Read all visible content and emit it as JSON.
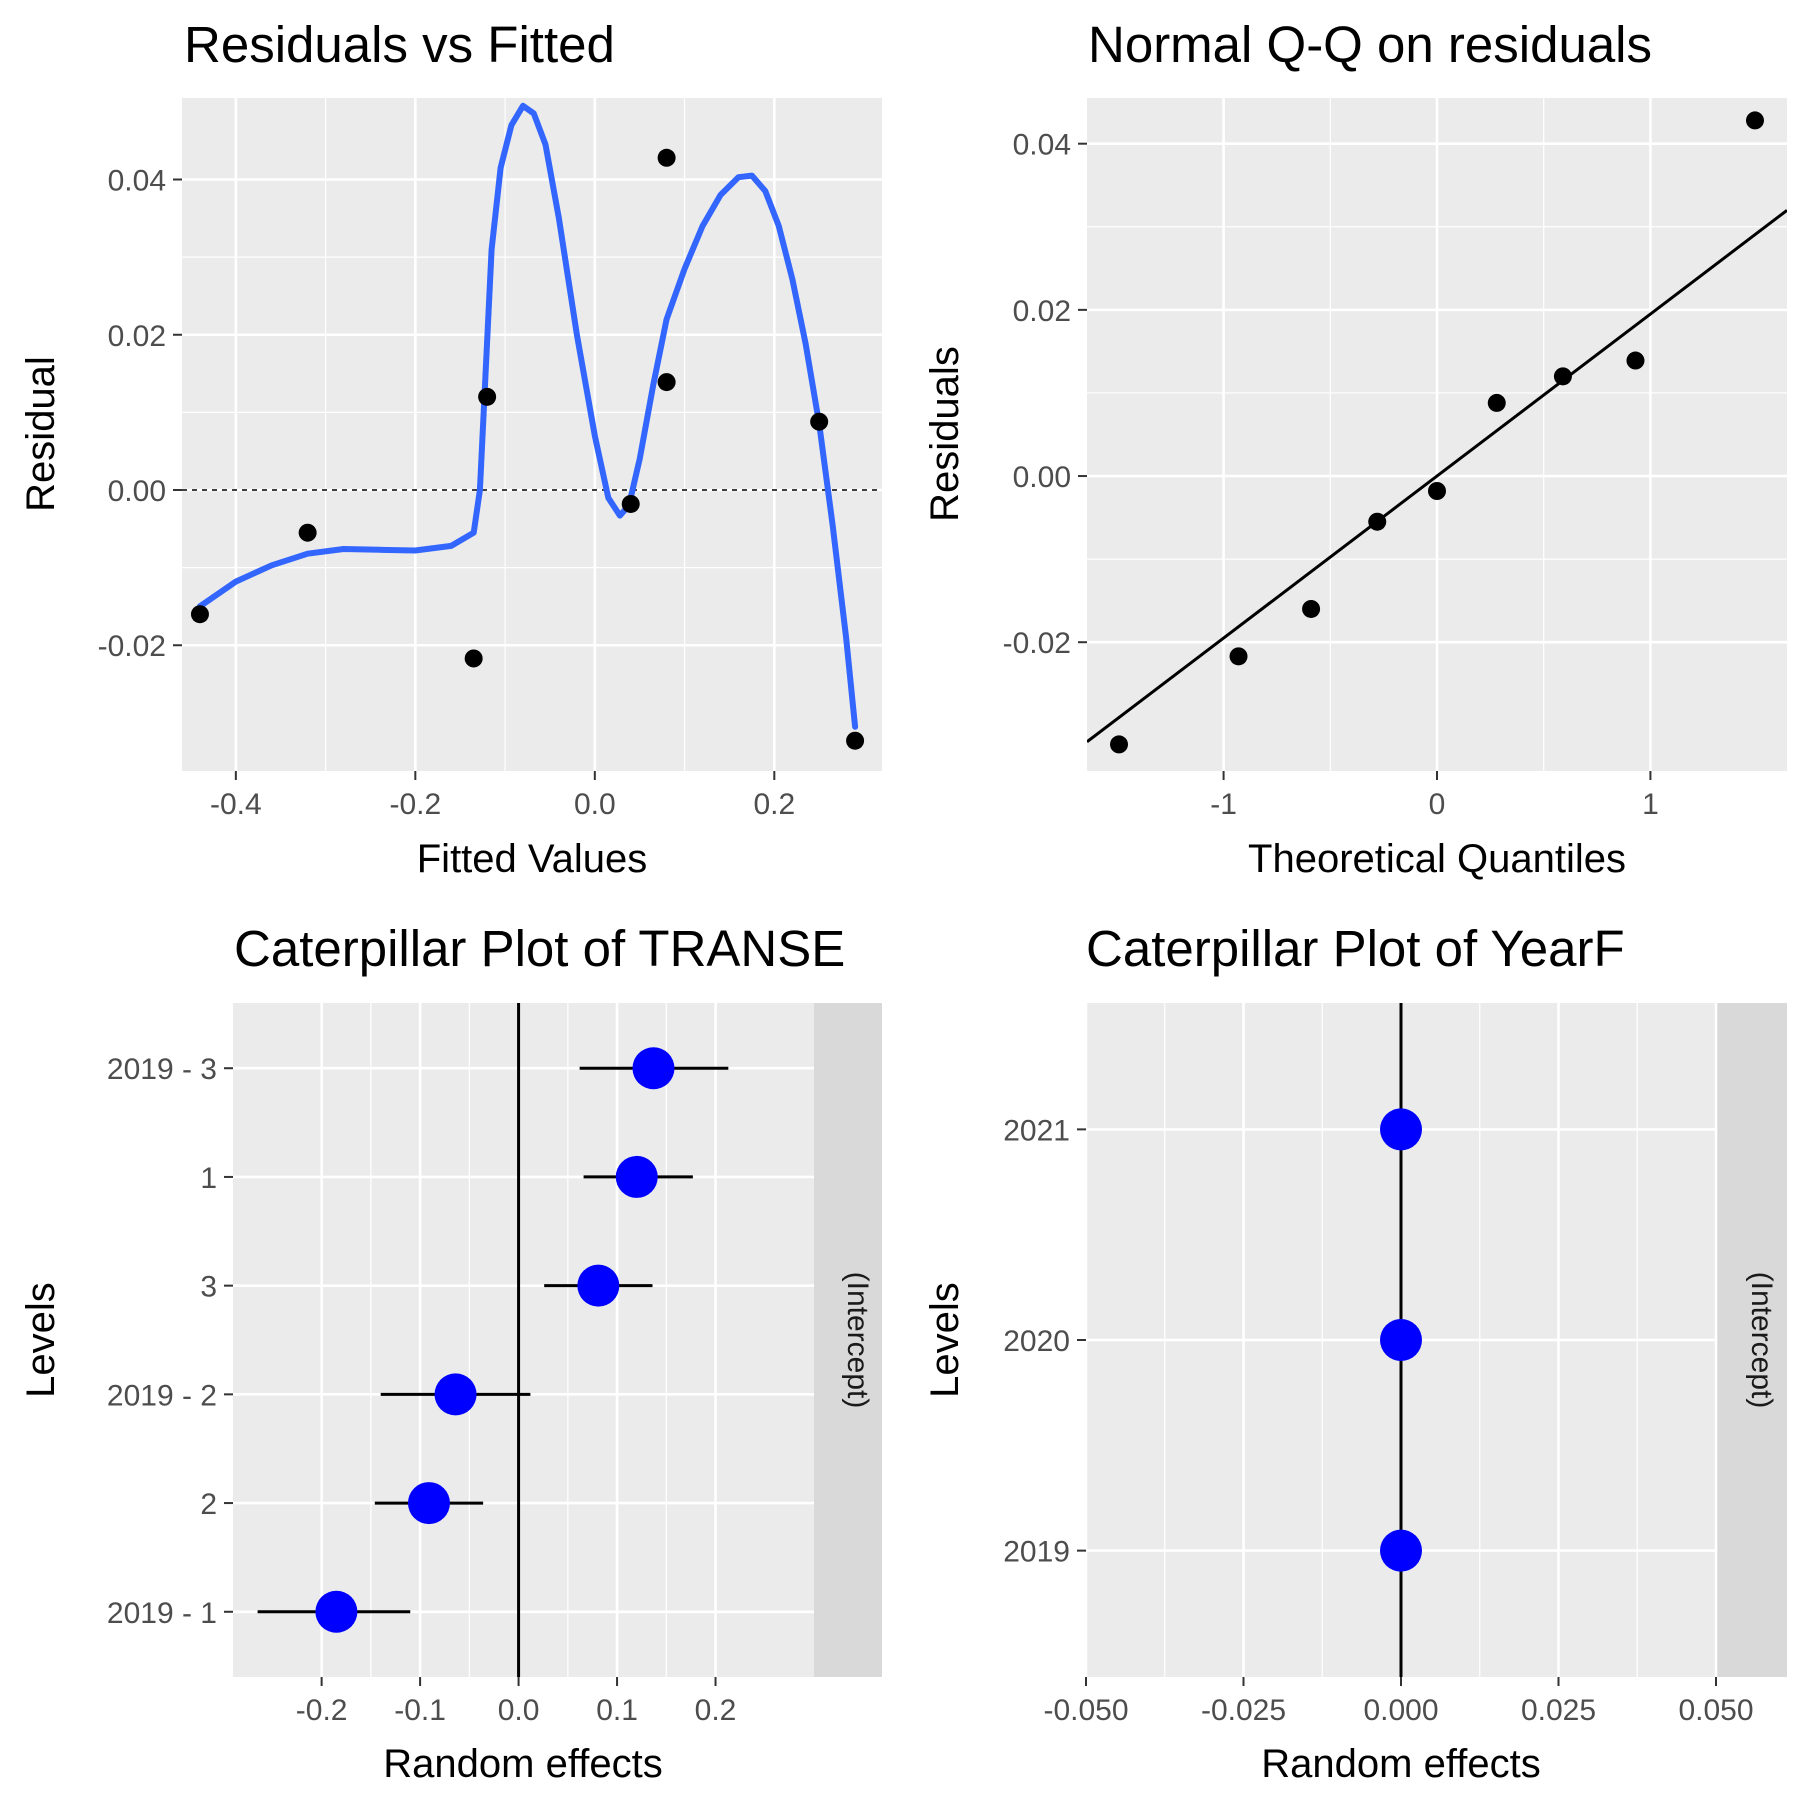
{
  "chart_data": [
    {
      "id": "resid",
      "type": "scatter",
      "title": "Residuals vs Fitted",
      "xlabel": "Fitted Values",
      "ylabel": "Residual",
      "xlim": [
        -0.46,
        0.32
      ],
      "ylim": [
        -0.0362,
        0.0505
      ],
      "x_ticks": [
        -0.4,
        -0.2,
        0.0,
        0.2
      ],
      "x_tick_labels": [
        "-0.4",
        "-0.2",
        "0.0",
        "0.2"
      ],
      "y_ticks": [
        -0.02,
        0.0,
        0.02,
        0.04
      ],
      "y_tick_labels": [
        "-0.02",
        "0.00",
        "0.02",
        "0.04"
      ],
      "grid": true,
      "reference_line": {
        "y": 0,
        "style": "dashed"
      },
      "points": [
        {
          "x": -0.44,
          "y": -0.016
        },
        {
          "x": -0.32,
          "y": -0.0055
        },
        {
          "x": -0.135,
          "y": -0.0217
        },
        {
          "x": -0.12,
          "y": 0.012
        },
        {
          "x": 0.04,
          "y": -0.0018
        },
        {
          "x": 0.08,
          "y": 0.0428
        },
        {
          "x": 0.08,
          "y": 0.0139
        },
        {
          "x": 0.25,
          "y": 0.0088
        },
        {
          "x": 0.29,
          "y": -0.0323
        }
      ],
      "smooth_color": "#3366FF",
      "smooth": [
        {
          "x": -0.44,
          "y": -0.015
        },
        {
          "x": -0.4,
          "y": -0.0118
        },
        {
          "x": -0.36,
          "y": -0.0097
        },
        {
          "x": -0.32,
          "y": -0.0082
        },
        {
          "x": -0.28,
          "y": -0.0076
        },
        {
          "x": -0.24,
          "y": -0.0077
        },
        {
          "x": -0.2,
          "y": -0.0078
        },
        {
          "x": -0.16,
          "y": -0.0072
        },
        {
          "x": -0.135,
          "y": -0.0055
        },
        {
          "x": -0.128,
          "y": 0.0
        },
        {
          "x": -0.115,
          "y": 0.031
        },
        {
          "x": -0.105,
          "y": 0.0415
        },
        {
          "x": -0.093,
          "y": 0.047
        },
        {
          "x": -0.08,
          "y": 0.0495
        },
        {
          "x": -0.068,
          "y": 0.0485
        },
        {
          "x": -0.055,
          "y": 0.0445
        },
        {
          "x": -0.04,
          "y": 0.035
        },
        {
          "x": -0.02,
          "y": 0.02
        },
        {
          "x": 0.0,
          "y": 0.007
        },
        {
          "x": 0.015,
          "y": -0.001
        },
        {
          "x": 0.028,
          "y": -0.0033
        },
        {
          "x": 0.038,
          "y": -0.002
        },
        {
          "x": 0.05,
          "y": 0.004
        },
        {
          "x": 0.065,
          "y": 0.0135
        },
        {
          "x": 0.08,
          "y": 0.022
        },
        {
          "x": 0.1,
          "y": 0.0285
        },
        {
          "x": 0.12,
          "y": 0.034
        },
        {
          "x": 0.14,
          "y": 0.038
        },
        {
          "x": 0.16,
          "y": 0.0403
        },
        {
          "x": 0.175,
          "y": 0.0405
        },
        {
          "x": 0.19,
          "y": 0.0385
        },
        {
          "x": 0.205,
          "y": 0.034
        },
        {
          "x": 0.22,
          "y": 0.0272
        },
        {
          "x": 0.235,
          "y": 0.0188
        },
        {
          "x": 0.25,
          "y": 0.0085
        },
        {
          "x": 0.265,
          "y": -0.0045
        },
        {
          "x": 0.28,
          "y": -0.019
        },
        {
          "x": 0.29,
          "y": -0.0305
        }
      ]
    },
    {
      "id": "qq",
      "type": "scatter",
      "title": "Normal Q-Q on residuals",
      "xlabel": "Theoretical Quantiles",
      "ylabel": "Residuals",
      "xlim": [
        -1.64,
        1.64
      ],
      "ylim": [
        -0.0355,
        0.0455
      ],
      "x_ticks": [
        -1,
        0,
        1
      ],
      "x_tick_labels": [
        "-1",
        "0",
        "1"
      ],
      "y_ticks": [
        -0.02,
        0.0,
        0.02,
        0.04
      ],
      "y_tick_labels": [
        "-0.02",
        "0.00",
        "0.02",
        "0.04"
      ],
      "grid": true,
      "points": [
        {
          "x": -1.49,
          "y": -0.0323
        },
        {
          "x": -0.93,
          "y": -0.0217
        },
        {
          "x": -0.59,
          "y": -0.016
        },
        {
          "x": -0.28,
          "y": -0.0055
        },
        {
          "x": 0.0,
          "y": -0.0018
        },
        {
          "x": 0.28,
          "y": 0.0088
        },
        {
          "x": 0.59,
          "y": 0.012
        },
        {
          "x": 0.93,
          "y": 0.0139
        },
        {
          "x": 1.49,
          "y": 0.0428
        }
      ],
      "reference_line": {
        "intercept": 0.0,
        "slope": 0.0195
      }
    },
    {
      "id": "cat1",
      "type": "scatter",
      "title": "Caterpillar Plot of  TRANSE",
      "xlabel": "Random effects",
      "ylabel": "Levels",
      "strip_label": "(Intercept)",
      "xlim": [
        -0.29,
        0.3
      ],
      "x_ticks": [
        -0.2,
        -0.1,
        0.0,
        0.1,
        0.2
      ],
      "x_tick_labels": [
        "-0.2",
        "-0.1",
        "0.0",
        "0.1",
        "0.2"
      ],
      "point_color": "#0000FF",
      "vline": 0,
      "levels": [
        {
          "label": "2019 - 1",
          "value": -0.185,
          "low": -0.265,
          "high": -0.11
        },
        {
          "label": "2",
          "value": -0.091,
          "low": -0.146,
          "high": -0.036
        },
        {
          "label": "2019 - 2",
          "value": -0.064,
          "low": -0.14,
          "high": 0.012
        },
        {
          "label": "3",
          "value": 0.081,
          "low": 0.026,
          "high": 0.136
        },
        {
          "label": "1",
          "value": 0.12,
          "low": 0.066,
          "high": 0.177
        },
        {
          "label": "2019 - 3",
          "value": 0.137,
          "low": 0.062,
          "high": 0.213
        }
      ]
    },
    {
      "id": "cat2",
      "type": "scatter",
      "title": "Caterpillar Plot of  YearF",
      "xlabel": "Random effects",
      "ylabel": "Levels",
      "strip_label": "(Intercept)",
      "xlim": [
        -0.05,
        0.05
      ],
      "x_ticks": [
        -0.05,
        -0.025,
        0.0,
        0.025,
        0.05
      ],
      "x_tick_labels": [
        "-0.050",
        "-0.025",
        "0.000",
        "0.025",
        "0.050"
      ],
      "point_color": "#0000FF",
      "vline": 0,
      "levels": [
        {
          "label": "2019",
          "value": 0.0,
          "low": 0.0,
          "high": 0.0
        },
        {
          "label": "2020",
          "value": 0.0,
          "low": 0.0,
          "high": 0.0
        },
        {
          "label": "2021",
          "value": 0.0,
          "low": 0.0,
          "high": 0.0
        }
      ]
    }
  ]
}
